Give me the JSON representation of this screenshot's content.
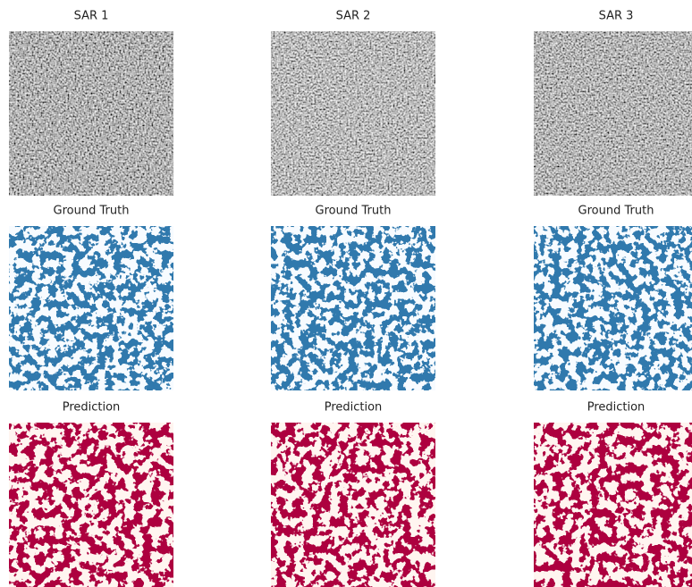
{
  "grid": {
    "rows": [
      [
        "SAR 1",
        "SAR 2",
        "SAR 3"
      ],
      [
        "Ground Truth",
        "Ground Truth",
        "Ground Truth"
      ],
      [
        "Prediction",
        "Prediction",
        "Prediction"
      ]
    ]
  }
}
